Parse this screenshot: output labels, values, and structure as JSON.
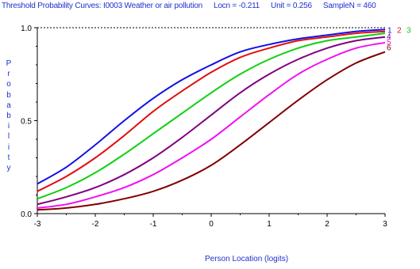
{
  "chart_data": {
    "type": "line",
    "title_parts": [
      "Threshold Probability Curves: I0003 Weather or air pollution",
      "Locn = -0.211",
      "Unit = 0.256",
      "SampleN = 460"
    ],
    "xlabel": "Person Location (logits)",
    "ylabel_letters": [
      "P",
      "r",
      "o",
      "b",
      "a",
      "b",
      "i",
      "l",
      "i",
      "t",
      "y"
    ],
    "xlim": [
      -3,
      3
    ],
    "ylim": [
      0,
      1
    ],
    "x_ticks": [
      "-3",
      "-2",
      "-1",
      "0",
      "1",
      "2",
      "3"
    ],
    "y_ticks": [
      "0.0",
      "0.5",
      "1.0"
    ],
    "reference_line": 1.0,
    "x": [
      -3,
      -2.5,
      -2,
      -1.5,
      -1,
      -0.5,
      0,
      0.5,
      1,
      1.5,
      2,
      2.5,
      3
    ],
    "series": [
      {
        "name": "1",
        "color": "#1010e6",
        "values": [
          0.16,
          0.25,
          0.37,
          0.5,
          0.62,
          0.72,
          0.8,
          0.87,
          0.91,
          0.94,
          0.96,
          0.98,
          0.99
        ]
      },
      {
        "name": "2",
        "color": "#e01010",
        "values": [
          0.12,
          0.2,
          0.3,
          0.42,
          0.55,
          0.66,
          0.76,
          0.84,
          0.89,
          0.93,
          0.95,
          0.97,
          0.98
        ]
      },
      {
        "name": "3",
        "color": "#10d010",
        "values": [
          0.08,
          0.14,
          0.22,
          0.32,
          0.43,
          0.54,
          0.65,
          0.75,
          0.83,
          0.89,
          0.93,
          0.95,
          0.97
        ]
      },
      {
        "name": "4",
        "color": "#800080",
        "values": [
          0.05,
          0.09,
          0.14,
          0.21,
          0.3,
          0.41,
          0.53,
          0.65,
          0.75,
          0.83,
          0.89,
          0.93,
          0.95
        ]
      },
      {
        "name": "5",
        "color": "#f010f0",
        "values": [
          0.03,
          0.05,
          0.09,
          0.14,
          0.21,
          0.3,
          0.4,
          0.52,
          0.64,
          0.75,
          0.83,
          0.89,
          0.92
        ]
      },
      {
        "name": "6",
        "color": "#800000",
        "values": [
          0.02,
          0.03,
          0.05,
          0.08,
          0.12,
          0.18,
          0.26,
          0.37,
          0.49,
          0.61,
          0.72,
          0.81,
          0.87
        ]
      }
    ]
  }
}
